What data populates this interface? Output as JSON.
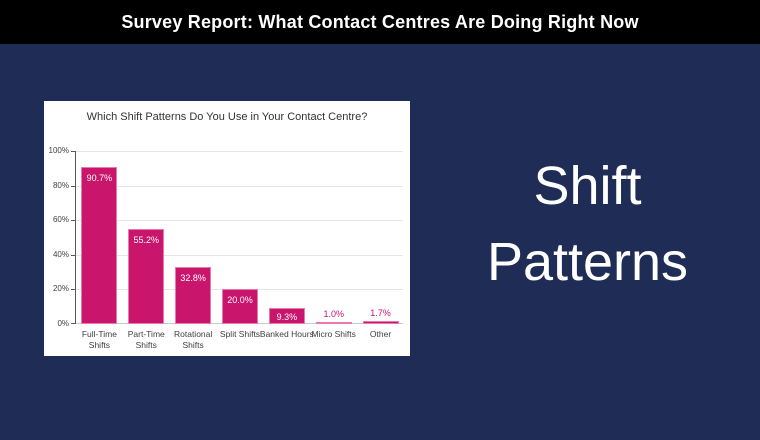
{
  "header": {
    "title": "Survey Report: What Contact Centres Are Doing Right Now"
  },
  "right_panel": {
    "lines": [
      "Shift",
      "Patterns"
    ]
  },
  "chart_data": {
    "type": "bar",
    "title": "Which Shift Patterns Do You Use in Your Contact Centre?",
    "categories": [
      "Full-Time Shifts",
      "Part-Time Shifts",
      "Rotational Shifts",
      "Split Shifts",
      "Banked Hours",
      "Micro Shifts",
      "Other"
    ],
    "values": [
      90.7,
      55.2,
      32.8,
      20.0,
      9.3,
      1.0,
      1.7
    ],
    "value_labels": [
      "90.7%",
      "55.2%",
      "32.8%",
      "20.0%",
      "9.3%",
      "1.0%",
      "1.7%"
    ],
    "xlabel": "",
    "ylabel": "",
    "ylim": [
      0,
      100
    ],
    "y_tick_labels": [
      "100%",
      "80%",
      "60%",
      "40%",
      "20%",
      "0%"
    ],
    "y_tick_values": [
      100,
      80,
      60,
      40,
      20,
      0
    ],
    "grid": true,
    "legend_position": "none",
    "bar_color": "#C9156B",
    "bar_border_color": "#E87AAE",
    "inside_label_color": "#FFFFFF",
    "outside_label_color": "#C9156B"
  },
  "colors": {
    "background": "#1F2C55",
    "header_bg": "#000000",
    "header_text": "#FFFFFF",
    "panel_bg": "#FFFFFF",
    "heading_text": "#FFFFFF"
  }
}
